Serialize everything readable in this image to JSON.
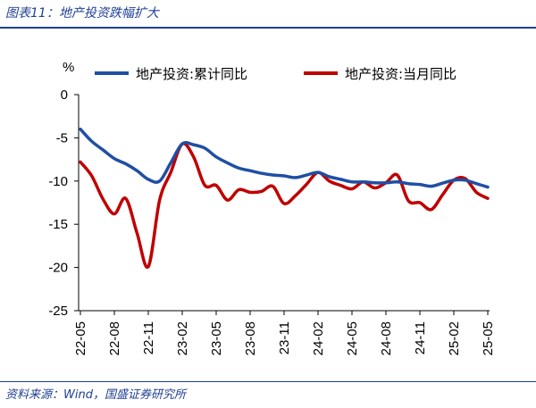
{
  "header": {
    "figure_title": "图表11：地产投资跌幅扩大"
  },
  "footer": {
    "source": "资料来源：Wind，国盛证券研究所"
  },
  "colors": {
    "accent": "#1f3f93",
    "series_cumulative": "#1f4fa3",
    "series_monthly": "#c00000"
  },
  "chart_data": {
    "type": "line",
    "title": "",
    "ylabel": "%",
    "xlabel": "",
    "ylim": [
      -25,
      0
    ],
    "yticks": [
      0,
      -5,
      -10,
      -15,
      -20,
      -25
    ],
    "grid": false,
    "legend_position": "top",
    "x": [
      "22-05",
      "22-06",
      "22-07",
      "22-08",
      "22-09",
      "22-10",
      "22-11",
      "22-12",
      "23-01",
      "23-02",
      "23-03",
      "23-04",
      "23-05",
      "23-06",
      "23-07",
      "23-08",
      "23-09",
      "23-10",
      "23-11",
      "23-12",
      "24-01",
      "24-02",
      "24-03",
      "24-04",
      "24-05",
      "24-06",
      "24-07",
      "24-08",
      "24-09",
      "24-10",
      "24-11",
      "24-12",
      "25-01",
      "25-02",
      "25-03",
      "25-04",
      "25-05"
    ],
    "xtick_labels": [
      "22-05",
      "22-08",
      "22-11",
      "23-02",
      "23-05",
      "23-08",
      "23-11",
      "24-02",
      "24-05",
      "24-08",
      "24-11",
      "25-02",
      "25-05"
    ],
    "series": [
      {
        "name": "地产投资:累计同比",
        "color": "#1f4fa3",
        "values": [
          -4.0,
          -5.4,
          -6.4,
          -7.4,
          -8.0,
          -8.8,
          -9.8,
          -10.0,
          null,
          -5.7,
          -5.8,
          -6.2,
          -7.2,
          -7.9,
          -8.5,
          -8.8,
          -9.1,
          -9.3,
          -9.4,
          -9.6,
          null,
          -9.0,
          -9.5,
          -9.8,
          -10.1,
          -10.1,
          -10.2,
          -10.2,
          -10.1,
          -10.3,
          -10.4,
          -10.6,
          null,
          -9.9,
          -9.9,
          -10.3,
          -10.7
        ]
      },
      {
        "name": "地产投资:当月同比",
        "color": "#c00000",
        "values": [
          -7.8,
          -9.4,
          -12.1,
          -13.8,
          -12.0,
          -16.0,
          -19.9,
          -12.2,
          null,
          -5.7,
          -7.2,
          -10.5,
          -10.5,
          -12.2,
          -11.0,
          -11.3,
          -11.2,
          -10.6,
          -12.6,
          -11.7,
          null,
          -9.0,
          -10.0,
          -10.5,
          -10.9,
          -10.1,
          -10.8,
          -10.2,
          -9.3,
          -12.3,
          -12.5,
          -13.3,
          null,
          -9.9,
          -9.7,
          -11.3,
          -12.0
        ]
      }
    ]
  }
}
